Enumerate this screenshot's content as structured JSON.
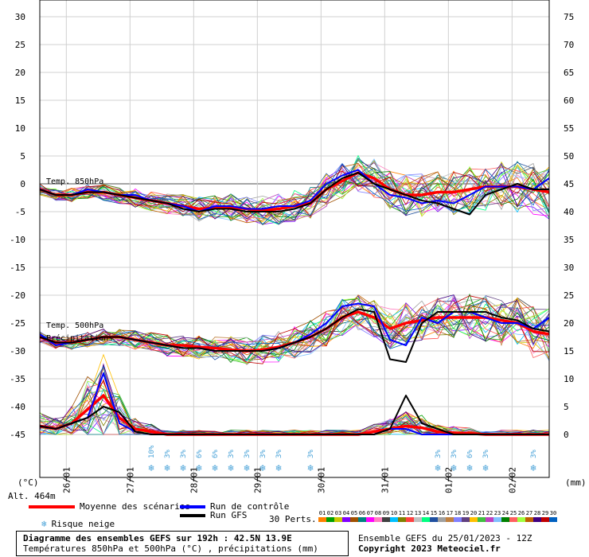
{
  "chart_data": {
    "type": "line",
    "left_axis": {
      "label": "(°C)",
      "ticks": [
        30,
        25,
        20,
        15,
        10,
        5,
        0,
        -5,
        -10,
        -15,
        -20,
        -25,
        -30,
        -35,
        -40,
        -45
      ],
      "range": [
        -45,
        30
      ]
    },
    "right_axis": {
      "label": "(mm)",
      "ticks": [
        75,
        70,
        65,
        60,
        55,
        50,
        45,
        40,
        35,
        30,
        25,
        20,
        15,
        10,
        5,
        0
      ],
      "range": [
        0,
        75
      ]
    },
    "altitude": "Alt. 464m",
    "x_ticks": [
      "26/01",
      "27/01",
      "28/01",
      "29/01",
      "30/01",
      "31/01",
      "01/02",
      "02/02"
    ],
    "x_range_hours": [
      0,
      192
    ],
    "annotations": {
      "t850": "Temp. 850hPa",
      "t500": "Temp. 500hPa",
      "precip": "Précipitations"
    },
    "snow_risk": [
      {
        "h": 42,
        "pct": "10%"
      },
      {
        "h": 48,
        "pct": "3%"
      },
      {
        "h": 54,
        "pct": "3%"
      },
      {
        "h": 60,
        "pct": "6%"
      },
      {
        "h": 66,
        "pct": "6%"
      },
      {
        "h": 72,
        "pct": "3%"
      },
      {
        "h": 78,
        "pct": "3%"
      },
      {
        "h": 84,
        "pct": "3%"
      },
      {
        "h": 90,
        "pct": "3%"
      },
      {
        "h": 102,
        "pct": "3%"
      },
      {
        "h": 150,
        "pct": "3%"
      },
      {
        "h": 156,
        "pct": "3%"
      },
      {
        "h": 162,
        "pct": "6%"
      },
      {
        "h": 168,
        "pct": "3%"
      },
      {
        "h": 186,
        "pct": "3%"
      }
    ],
    "series": [
      {
        "name": "Moyenne des scénarios",
        "color": "#ff0000",
        "group": "t850",
        "x": [
          0,
          6,
          12,
          18,
          24,
          30,
          36,
          42,
          48,
          54,
          60,
          66,
          72,
          78,
          84,
          90,
          96,
          102,
          108,
          114,
          120,
          126,
          132,
          138,
          144,
          150,
          156,
          162,
          168,
          174,
          180,
          186,
          192
        ],
        "values": [
          -1,
          -2,
          -2,
          -1.5,
          -1.5,
          -2,
          -2.5,
          -3,
          -3.5,
          -4,
          -4.5,
          -4.3,
          -4.2,
          -4.5,
          -4.8,
          -4.5,
          -4,
          -3.5,
          -1,
          0.5,
          2,
          1,
          -1,
          -2,
          -2,
          -1.5,
          -1.5,
          -1,
          -0.5,
          -0.5,
          -0.5,
          -1,
          -1.5
        ]
      },
      {
        "name": "Run de contrôle",
        "color": "#0000ff",
        "group": "t850",
        "x": [
          0,
          6,
          12,
          18,
          24,
          30,
          36,
          42,
          48,
          54,
          60,
          66,
          72,
          78,
          84,
          90,
          96,
          102,
          108,
          114,
          120,
          126,
          132,
          138,
          144,
          150,
          156,
          162,
          168,
          174,
          180,
          186,
          192
        ],
        "values": [
          -1,
          -2,
          -2,
          -1,
          -1.5,
          -2,
          -2,
          -3,
          -3.5,
          -4,
          -5,
          -4,
          -4,
          -4.5,
          -4.5,
          -4,
          -4,
          -3,
          0,
          1.5,
          2.5,
          0,
          -2,
          -2.5,
          -3.5,
          -3,
          -3.5,
          -2,
          -0.5,
          -0.5,
          -0.5,
          -1,
          1
        ]
      },
      {
        "name": "Run GFS",
        "color": "#000000",
        "group": "t850",
        "x": [
          0,
          6,
          12,
          18,
          24,
          30,
          36,
          42,
          48,
          54,
          60,
          66,
          72,
          78,
          84,
          90,
          96,
          102,
          108,
          114,
          120,
          126,
          132,
          138,
          144,
          150,
          156,
          162,
          168,
          174,
          180,
          186,
          192
        ],
        "values": [
          -1,
          -2,
          -2,
          -1.5,
          -1.5,
          -2,
          -2.5,
          -3,
          -3.5,
          -4.5,
          -5,
          -4.5,
          -4.5,
          -5,
          -5,
          -5,
          -4.5,
          -3.5,
          -1,
          1,
          2,
          0,
          -1,
          -2,
          -3,
          -3.5,
          -4.5,
          -5.5,
          -2,
          -1,
          0,
          -1,
          -1
        ]
      },
      {
        "name": "Moyenne des scénarios",
        "color": "#ff0000",
        "group": "t500",
        "x": [
          0,
          6,
          12,
          18,
          24,
          30,
          36,
          42,
          48,
          54,
          60,
          66,
          72,
          78,
          84,
          90,
          96,
          102,
          108,
          114,
          120,
          126,
          132,
          138,
          144,
          150,
          156,
          162,
          168,
          174,
          180,
          186,
          192
        ],
        "values": [
          -27.5,
          -28.5,
          -28.5,
          -28,
          -27.5,
          -27.5,
          -28,
          -28.5,
          -29,
          -29,
          -29.3,
          -29.5,
          -29.8,
          -30,
          -29.8,
          -29.3,
          -28.5,
          -27.5,
          -26,
          -24,
          -23,
          -24,
          -26,
          -25,
          -24.5,
          -24,
          -24,
          -24,
          -24,
          -24.5,
          -25,
          -26.5,
          -27
        ]
      },
      {
        "name": "Run de contrôle",
        "color": "#0000ff",
        "group": "t500",
        "x": [
          0,
          6,
          12,
          18,
          24,
          30,
          36,
          42,
          48,
          54,
          60,
          66,
          72,
          78,
          84,
          90,
          96,
          102,
          108,
          114,
          120,
          126,
          132,
          138,
          144,
          150,
          156,
          162,
          168,
          174,
          180,
          186,
          192
        ],
        "values": [
          -27,
          -29,
          -28.5,
          -28,
          -27.5,
          -27.5,
          -28,
          -28.5,
          -29,
          -29.5,
          -29.5,
          -30,
          -30,
          -30,
          -30,
          -29.5,
          -28.5,
          -27,
          -25,
          -22,
          -21.5,
          -22,
          -28,
          -29,
          -24,
          -25,
          -23,
          -23,
          -24,
          -25,
          -25,
          -26,
          -24
        ]
      },
      {
        "name": "Run GFS",
        "color": "#000000",
        "group": "t500",
        "x": [
          0,
          6,
          12,
          18,
          24,
          30,
          36,
          42,
          48,
          54,
          60,
          66,
          72,
          78,
          84,
          90,
          96,
          102,
          108,
          114,
          120,
          126,
          132,
          138,
          144,
          150,
          156,
          162,
          168,
          174,
          180,
          186,
          192
        ],
        "values": [
          -27.5,
          -28.5,
          -28.5,
          -28,
          -27.5,
          -27.5,
          -28,
          -28.5,
          -29,
          -29.5,
          -29.5,
          -30,
          -30,
          -30,
          -30,
          -29.5,
          -28.5,
          -27.5,
          -26,
          -24,
          -22.5,
          -23,
          -31.5,
          -32,
          -25,
          -23,
          -23,
          -23,
          -23,
          -24,
          -24.5,
          -26,
          -26.5
        ]
      },
      {
        "name": "Moyenne des scénarios",
        "color": "#ff0000",
        "group": "precip",
        "x": [
          0,
          6,
          12,
          18,
          24,
          30,
          36,
          42,
          48,
          54,
          60,
          66,
          72,
          78,
          84,
          90,
          96,
          102,
          108,
          114,
          120,
          126,
          132,
          138,
          144,
          150,
          156,
          162,
          168,
          174,
          180,
          186,
          192
        ],
        "values": [
          1.5,
          1,
          2,
          4.5,
          7,
          3,
          1,
          0.5,
          0,
          0,
          0,
          0,
          0,
          0,
          0,
          0,
          0,
          0,
          0,
          0,
          0,
          0.5,
          1,
          1.5,
          1.2,
          0.5,
          0.3,
          0.2,
          0,
          0,
          0,
          0,
          0
        ]
      },
      {
        "name": "Run de contrôle",
        "color": "#0000ff",
        "group": "precip",
        "x": [
          0,
          6,
          12,
          18,
          24,
          30,
          36,
          42,
          48,
          54,
          60,
          66,
          72,
          78,
          84,
          90,
          96,
          102,
          108,
          114,
          120,
          126,
          132,
          138,
          144,
          150,
          156,
          162,
          168,
          174,
          180,
          186,
          192
        ],
        "values": [
          1.5,
          1,
          2,
          3,
          11,
          2,
          0.5,
          0,
          0,
          0,
          0,
          0,
          0,
          0,
          0,
          0,
          0,
          0,
          0,
          0,
          0,
          0,
          1,
          1,
          0,
          0,
          0,
          0,
          0,
          0,
          0,
          0,
          0
        ]
      },
      {
        "name": "Run GFS",
        "color": "#000000",
        "group": "precip",
        "x": [
          0,
          6,
          12,
          18,
          24,
          30,
          36,
          42,
          48,
          54,
          60,
          66,
          72,
          78,
          84,
          90,
          96,
          102,
          108,
          114,
          120,
          126,
          132,
          138,
          144,
          150,
          156,
          162,
          168,
          174,
          180,
          186,
          192
        ],
        "values": [
          1.5,
          1,
          2,
          3,
          5,
          4,
          0.5,
          0,
          0,
          0,
          0,
          0,
          0,
          0,
          0,
          0,
          0,
          0,
          0,
          0,
          0,
          0,
          1,
          7,
          2,
          1,
          0,
          0,
          0,
          0,
          0,
          0,
          0
        ]
      }
    ]
  },
  "legend": {
    "mean": "Moyenne des scénarios",
    "control": "Run de contrôle",
    "gfs": "Run GFS",
    "snow": "Risque neige",
    "perts_label": "30 Perts.",
    "pert_numbers": [
      "01",
      "02",
      "03",
      "04",
      "05",
      "06",
      "07",
      "08",
      "09",
      "10",
      "11",
      "12",
      "13",
      "14",
      "15",
      "16",
      "17",
      "18",
      "19",
      "20",
      "21",
      "22",
      "23",
      "24",
      "25",
      "26",
      "27",
      "28",
      "29",
      "30"
    ],
    "pert_colors": [
      "#ff8000",
      "#00a000",
      "#c8c800",
      "#8000ff",
      "#a05000",
      "#008080",
      "#ff00ff",
      "#ff80c0",
      "#404040",
      "#00c0ff",
      "#808000",
      "#ff4040",
      "#c0c0c0",
      "#00ff80",
      "#2050a0",
      "#a0a0a0",
      "#c08040",
      "#8080ff",
      "#604080",
      "#ffc000",
      "#40c040",
      "#c040c0",
      "#80c0ff",
      "#008000",
      "#ff6060",
      "#a0ff40",
      "#c06000",
      "#400080",
      "#c00000",
      "#0060c0"
    ],
    "mean_color": "#ff0000",
    "control_color": "#0000ff",
    "gfs_color": "#000000"
  },
  "title": {
    "line1": "Diagramme des ensembles GEFS sur 192h : 42.5N 13.9E",
    "line2": "Températures 850hPa et 500hPa (°C) , précipitations (mm)"
  },
  "credit": {
    "line1": "Ensemble GEFS du 25/01/2023 - 12Z",
    "line2": "Copyright 2023 Meteociel.fr"
  }
}
